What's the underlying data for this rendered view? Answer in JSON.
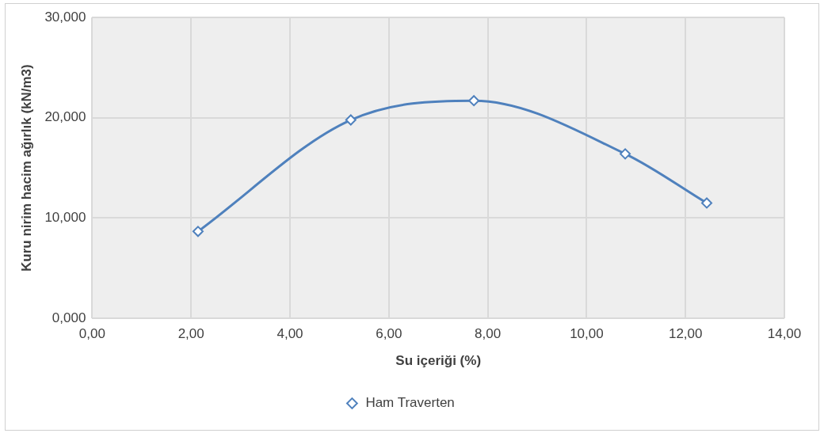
{
  "chart_data": {
    "type": "line",
    "xlabel": "Su içeriği (%)",
    "ylabel": "Kuru nirim hacim ağırlık (kN/m3)",
    "xlim": [
      0,
      14
    ],
    "xticks": [
      {
        "value": 0,
        "label": "0,00"
      },
      {
        "value": 2,
        "label": "2,00"
      },
      {
        "value": 4,
        "label": "4,00"
      },
      {
        "value": 6,
        "label": "6,00"
      },
      {
        "value": 8,
        "label": "8,00"
      },
      {
        "value": 10,
        "label": "10,00"
      },
      {
        "value": 12,
        "label": "12,00"
      },
      {
        "value": 14,
        "label": "14,00"
      }
    ],
    "ylim": [
      0,
      30
    ],
    "yticks": [
      {
        "value": 0,
        "label": "0,000"
      },
      {
        "value": 10,
        "label": "10,000"
      },
      {
        "value": 20,
        "label": "20,000"
      },
      {
        "value": 30,
        "label": "30,000"
      }
    ],
    "grid": true,
    "legend": "bottom",
    "marker": "diamond",
    "line_style": "solid",
    "series": [
      {
        "name": "Ham Traverten",
        "color": "#4f81bd",
        "x": [
          2.14,
          5.23,
          7.72,
          10.78,
          12.43
        ],
        "values": [
          8.67,
          19.78,
          21.7,
          16.4,
          11.5
        ]
      }
    ]
  }
}
